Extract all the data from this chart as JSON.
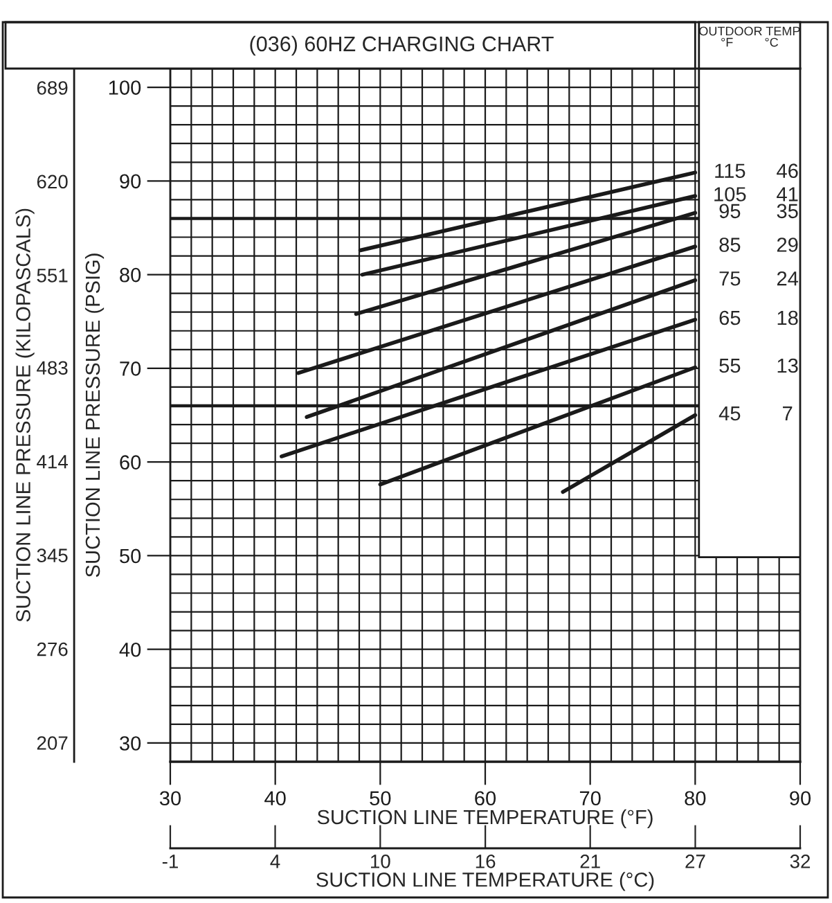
{
  "chart_data": {
    "type": "line",
    "title": "(036) 60HZ CHARGING CHART",
    "xlabel": "SUCTION LINE TEMPERATURE (°F)",
    "ylabel": "SUCTION LINE PRESSURE (PSIG)",
    "y2label": "SUCTION LINE PRESSURE (KILOPASCALS)",
    "x2label": "SUCTION LINE TEMPERATURE (°C)",
    "legend_title": "OUTDOOR TEMP\n°F         °C",
    "xlim": [
      30,
      90
    ],
    "xticks": [
      30,
      40,
      50,
      60,
      70,
      80,
      90
    ],
    "ylim": [
      28,
      102
    ],
    "yticks": [
      30,
      40,
      50,
      60,
      70,
      80,
      90,
      100
    ],
    "y2lim": [
      193,
      703
    ],
    "y2ticks": [
      207,
      276,
      345,
      414,
      483,
      551,
      620,
      689
    ],
    "x2lim": [
      -1.11,
      32.22
    ],
    "x2ticks": [
      {
        "value": -1.11,
        "label": "-1"
      },
      {
        "value": 4.44,
        "label": "4"
      },
      {
        "value": 10,
        "label": "10"
      },
      {
        "value": 15.56,
        "label": "16"
      },
      {
        "value": 21.11,
        "label": "21"
      },
      {
        "value": 26.67,
        "label": "27"
      },
      {
        "value": 32.22,
        "label": "32"
      }
    ],
    "grid": true,
    "marker": "none",
    "line_style": "solid",
    "legend": "right",
    "series": [
      {
        "name": "115",
        "color": "#1a1a1a",
        "x": [
          48.1,
          80
        ],
        "values": [
          82.6,
          90.9
        ]
      },
      {
        "name": "105",
        "color": "#1a1a1a",
        "x": [
          48.3,
          80
        ],
        "values": [
          80.0,
          88.4
        ]
      },
      {
        "name": "95",
        "color": "#1a1a1a",
        "x": [
          47.7,
          80
        ],
        "values": [
          75.8,
          86.6
        ]
      },
      {
        "name": "85",
        "color": "#1a1a1a",
        "x": [
          42.2,
          80
        ],
        "values": [
          69.5,
          83.0
        ]
      },
      {
        "name": "75",
        "color": "#1a1a1a",
        "x": [
          43.0,
          80
        ],
        "values": [
          64.8,
          79.4
        ]
      },
      {
        "name": "65",
        "color": "#1a1a1a",
        "x": [
          40.6,
          80
        ],
        "values": [
          60.6,
          75.2
        ]
      },
      {
        "name": "55",
        "color": "#1a1a1a",
        "x": [
          50.0,
          80
        ],
        "values": [
          57.6,
          70.1
        ]
      },
      {
        "name": "45",
        "color": "#1a1a1a",
        "x": [
          67.4,
          80
        ],
        "values": [
          56.8,
          65.0
        ]
      }
    ],
    "annotations": [
      "46",
      "41",
      "35",
      "29",
      "24",
      "18",
      "13",
      "7"
    ],
    "ref_lines": [
      {
        "axis": "y",
        "value": 86,
        "color": "#1a1a1a"
      },
      {
        "axis": "y",
        "value": 66,
        "color": "#1a1a1a"
      }
    ]
  }
}
